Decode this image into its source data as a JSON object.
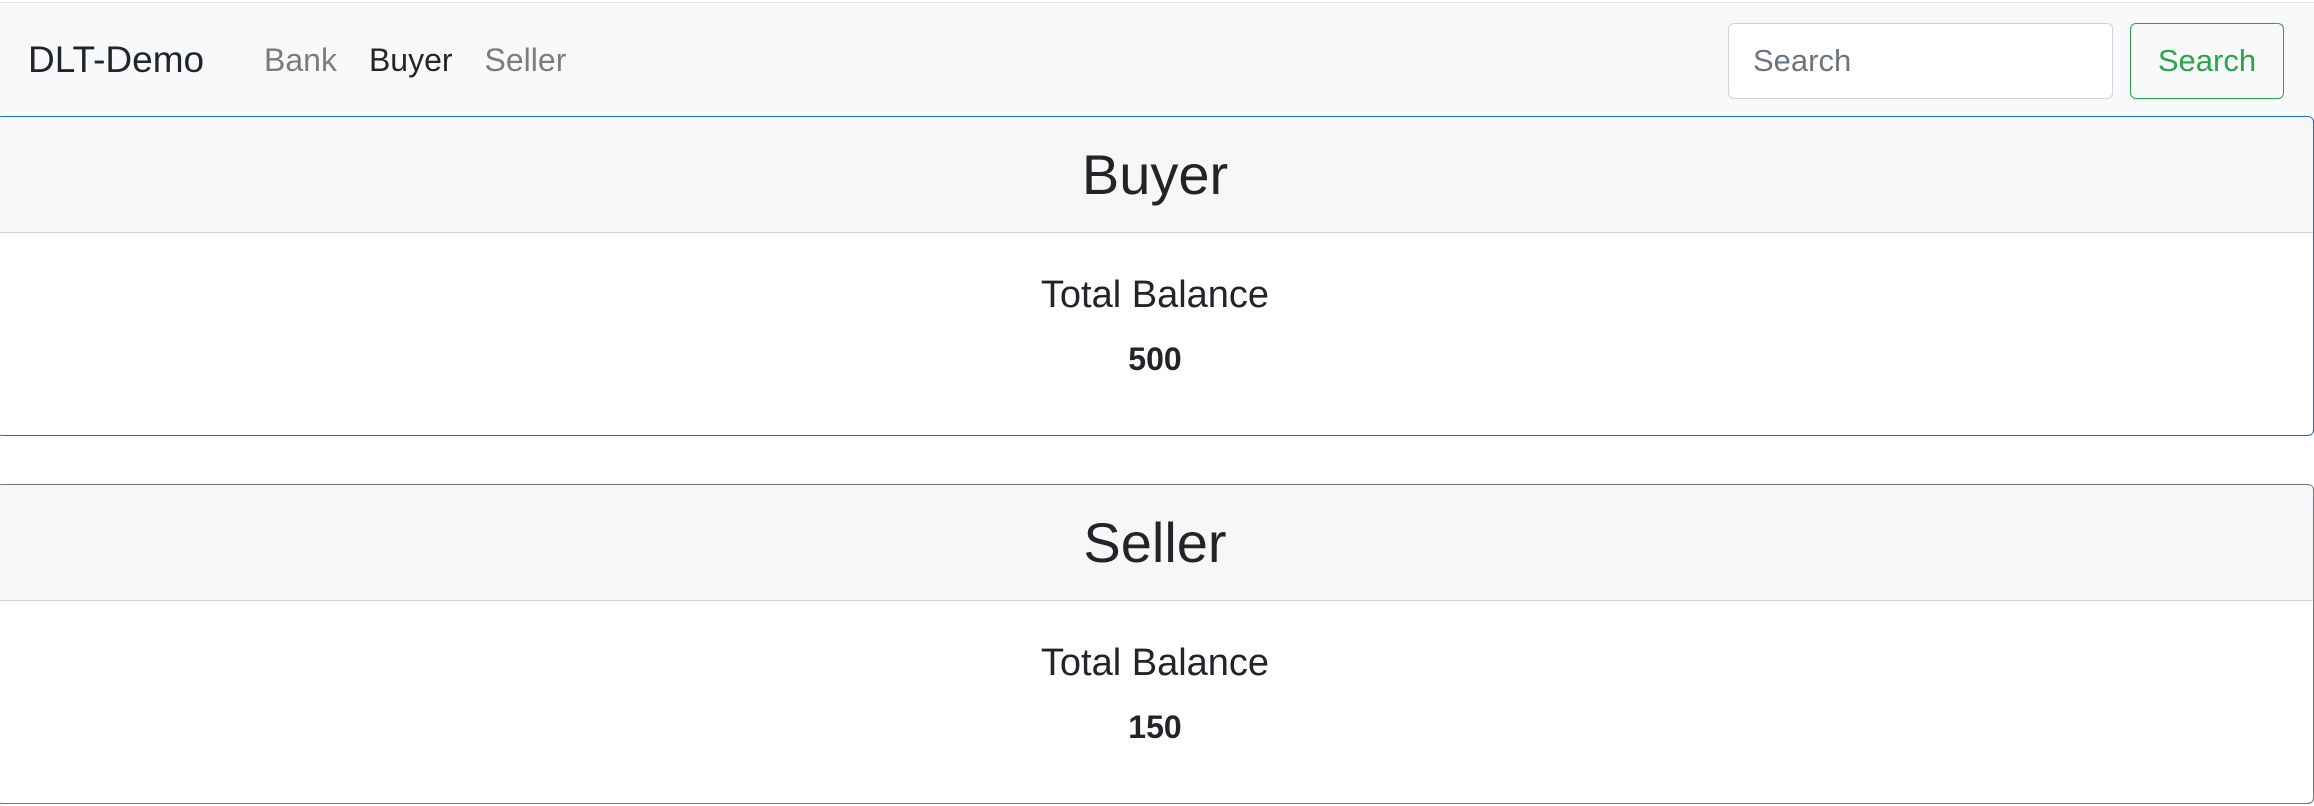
{
  "navbar": {
    "brand": "DLT-Demo",
    "links": [
      {
        "label": "Bank",
        "active": false
      },
      {
        "label": "Buyer",
        "active": true
      },
      {
        "label": "Seller",
        "active": false
      }
    ],
    "search": {
      "placeholder": "Search",
      "value": "",
      "button_label": "Search",
      "button_color": "#28a745"
    }
  },
  "cards": {
    "buyer": {
      "title": "Buyer",
      "balance_label": "Total Balance",
      "balance_value": "500",
      "border_color": "#1b6ad6"
    },
    "seller": {
      "title": "Seller",
      "balance_label": "Total Balance",
      "balance_value": "150",
      "border_color": "#6c757d"
    }
  }
}
